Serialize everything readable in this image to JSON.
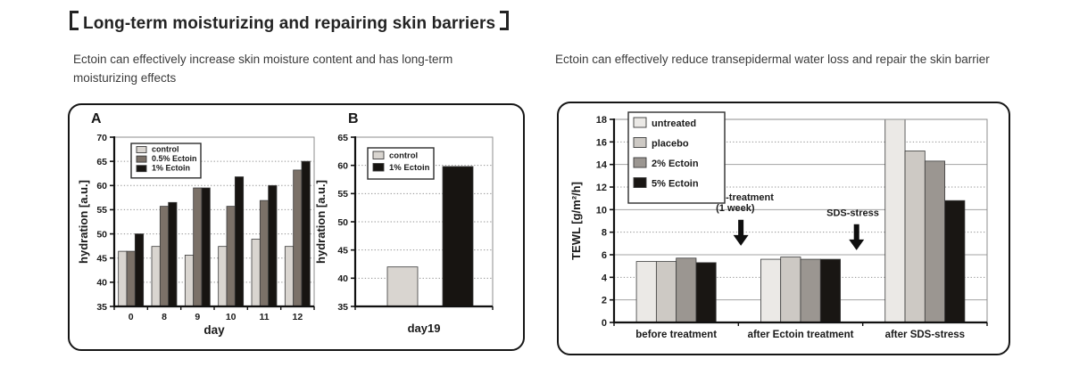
{
  "header": {
    "title_text": "Long-term moisturizing and repairing skin barriers",
    "bracket_left": "【",
    "bracket_right": "】"
  },
  "sections": {
    "hydration": {
      "subtitle": "Ectoin can effectively increase skin moisture content and has long-term moisturizing effects"
    },
    "tewl": {
      "subtitle": "Ectoin can effectively reduce transepidermal water loss and repair the skin barrier"
    }
  },
  "chart_data": [
    {
      "id": "hydration-A",
      "type": "bar",
      "panel_label": "A",
      "ylabel": "hydration [a.u.]",
      "xlabel": "day",
      "ylim": [
        35,
        70
      ],
      "ytick_step": 5,
      "grid": "dotted",
      "legend_position": "top-left",
      "categories": [
        "0",
        "8",
        "9",
        "10",
        "11",
        "12"
      ],
      "series": [
        {
          "name": "control",
          "color": "#d9d5d0",
          "values": [
            46.4,
            47.4,
            45.6,
            47.4,
            48.9,
            47.4
          ]
        },
        {
          "name": "0.5% Ectoin",
          "color": "#7b7168",
          "values": [
            46.4,
            55.7,
            59.5,
            55.7,
            56.9,
            63.2
          ]
        },
        {
          "name": "1% Ectoin",
          "color": "#171411",
          "values": [
            50.0,
            56.5,
            59.5,
            61.8,
            60.0,
            65.0
          ]
        }
      ]
    },
    {
      "id": "hydration-B",
      "type": "bar",
      "panel_label": "B",
      "ylabel": "hydration [a.u.]",
      "xlabel": "day19",
      "ylim": [
        35,
        65
      ],
      "ytick_step": 5,
      "grid": "dotted",
      "legend_position": "top-left",
      "categories": [
        "day19"
      ],
      "series": [
        {
          "name": "control",
          "color": "#d9d5d0",
          "values": [
            42.0
          ]
        },
        {
          "name": "1% Ectoin",
          "color": "#171411",
          "values": [
            59.8
          ]
        }
      ]
    },
    {
      "id": "tewl",
      "type": "bar",
      "panel_label": "",
      "ylabel": "TEWL [g/m²/h]",
      "xlabel": "",
      "ylim": [
        0,
        18
      ],
      "ytick_step": 2,
      "grid": "mixed",
      "legend_position": "top-left",
      "categories": [
        "before treatment",
        "after Ectoin treatment",
        "after SDS-stress"
      ],
      "series": [
        {
          "name": "untreated",
          "color": "#ebe9e6",
          "values": [
            5.4,
            5.6,
            18.0
          ]
        },
        {
          "name": "placebo",
          "color": "#cdc9c4",
          "values": [
            5.4,
            5.8,
            15.2
          ]
        },
        {
          "name": "2% Ectoin",
          "color": "#9b9691",
          "values": [
            5.7,
            5.6,
            14.3
          ]
        },
        {
          "name": "5% Ectoin",
          "color": "#191613",
          "values": [
            5.3,
            5.6,
            10.8
          ]
        }
      ],
      "annotations": [
        {
          "lines": [
            "ectoin-treatment",
            "(1 week)"
          ],
          "text_x_frac": 0.325,
          "text_top_value": 10.8,
          "arrow_x_frac": 0.34,
          "arrow_top_value": 9.1,
          "arrow_tip_value": 6.8
        },
        {
          "lines": [
            "SDS-stress"
          ],
          "text_x_frac": 0.64,
          "text_top_value": 9.45,
          "arrow_x_frac": 0.65,
          "arrow_top_value": 8.7,
          "arrow_tip_value": 6.4
        }
      ]
    }
  ]
}
